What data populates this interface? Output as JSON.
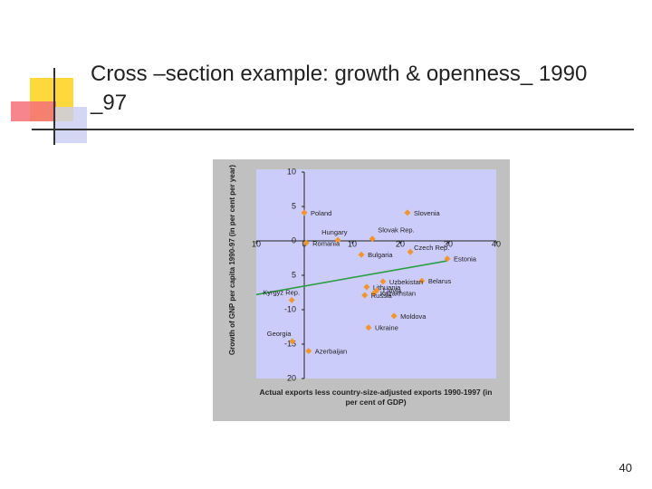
{
  "slide": {
    "title": "Cross –section example: growth & openness_ 1990 _97",
    "page_number": "40"
  },
  "chart_data": {
    "type": "scatter",
    "y_label": "Growth of GNP per capita 1990-97 (in per cent per year)",
    "x_label": "Actual exports less country-size-adjusted exports 1990-1997 (in per cent of GDP)",
    "point_labels": [
      "Poland",
      "Slovenia",
      "Hungary",
      "Slovak Rep.",
      "Romania",
      "Bulgaria",
      "Czech Rep.",
      "Estonia",
      "Belarus",
      "Uzbekistan",
      "Lithuania",
      "Latvia",
      "Kazakhstan",
      "Russia",
      "Kyrgyz Rep.",
      "Moldova",
      "Ukraine",
      "Georgia",
      "Azerbaijan"
    ],
    "x": [
      0,
      21.5,
      7.0,
      14.2,
      0.4,
      11.9,
      22.1,
      29.8,
      24.5,
      16.4,
      13.0,
      15.1,
      14.5,
      12.6,
      -2.6,
      18.7,
      13.4,
      -2.5,
      0.9
    ],
    "values": [
      4.1,
      4.1,
      0.1,
      0.3,
      -0.3,
      -2.0,
      -1.6,
      -2.6,
      -5.8,
      -5.9,
      -6.7,
      -7.2,
      -7.6,
      -7.9,
      -8.6,
      -10.9,
      -12.6,
      -14.6,
      -16.0
    ],
    "color": "#f0952f",
    "trendline": {
      "x": [
        -10,
        29.8
      ],
      "values": [
        -7.8,
        -2.9
      ],
      "color": "#2e9e44"
    },
    "xlim": [
      -10,
      40
    ],
    "xticks": [
      {
        "value": -10,
        "label": "10"
      },
      0,
      10,
      20,
      30,
      40
    ],
    "ylim": [
      -20,
      10
    ],
    "yticks": [
      10,
      5,
      0,
      {
        "value": -5,
        "label": "5"
      },
      -10,
      -15,
      {
        "value": -20,
        "label": "20"
      }
    ]
  }
}
